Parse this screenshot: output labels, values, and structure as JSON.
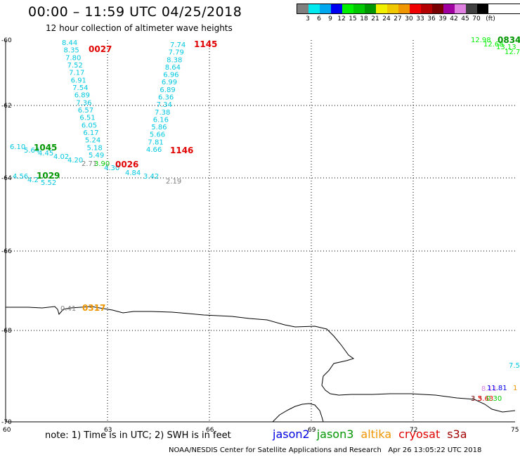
{
  "header": {
    "title": "00:00 – 11:59 UTC 04/25/2018",
    "subtitle": "12 hour collection of altimeter wave heights"
  },
  "legend": {
    "colors": [
      "#808080",
      "#00eaf0",
      "#00a8f0",
      "#0000f0",
      "#00f000",
      "#00c800",
      "#009600",
      "#f0f000",
      "#f0c800",
      "#f09600",
      "#f00000",
      "#b40000",
      "#780000",
      "#a000a0",
      "#e080e0",
      "#404040",
      "#000000"
    ],
    "labels": [
      "3",
      "6",
      "9",
      "12",
      "15",
      "18",
      "21",
      "24",
      "27",
      "30",
      "33",
      "36",
      "39",
      "42",
      "45",
      "70",
      "(ft)"
    ]
  },
  "axes": {
    "lon_ticks": [
      "60",
      "63",
      "66",
      "69",
      "72",
      "75"
    ],
    "lat_ticks": [
      "-60",
      "-62",
      "-64",
      "-66",
      "-68",
      "-70"
    ]
  },
  "tracks": [
    {
      "color": "#00c8e0",
      "values": [
        "8.44",
        "8.35",
        "7.80",
        "7.52",
        "7.17",
        "6.91",
        "7.54",
        "6.89",
        "7.36",
        "6.57",
        "6.51",
        "6.05",
        "6.17",
        "5.24",
        "5.18",
        "5.49"
      ]
    },
    {
      "color": "#00c8e0",
      "values": [
        "7.74",
        "7.79",
        "8.38",
        "8.64",
        "6.96",
        "6.99",
        "6.89",
        "6.36",
        "7.34",
        "7.38",
        "6.16",
        "5.86",
        "5.66",
        "7.81",
        "4.66"
      ]
    },
    {
      "color": "#00c8e0",
      "values": [
        "6.10",
        "5.64",
        "4.45",
        "4.02",
        "4.20",
        "4.30",
        "4.84",
        "3.42"
      ]
    },
    {
      "color": "#00c8e0",
      "values": [
        "4.56",
        "4.2",
        "5.52"
      ]
    }
  ],
  "extra_values": [
    {
      "text": "2.71",
      "color": "#808080"
    },
    {
      "text": "3.90",
      "color": "#00c800"
    },
    {
      "text": "2.19",
      "color": "#808080"
    },
    {
      "text": "0.41",
      "color": "#808080"
    },
    {
      "text": "12.98",
      "color": "#00f000"
    },
    {
      "text": "12.68",
      "color": "#00f000"
    },
    {
      "text": "13.13",
      "color": "#00f000"
    },
    {
      "text": "12.7",
      "color": "#00f000"
    },
    {
      "text": "7.5",
      "color": "#00c8e0"
    },
    {
      "text": "8.11",
      "color": "#e080e0"
    },
    {
      "text": "11.81",
      "color": "#0000f0"
    },
    {
      "text": "1",
      "color": "#f09600"
    },
    {
      "text": "3.3",
      "color": "#780000"
    },
    {
      "text": "5.63",
      "color": "#f00000"
    },
    {
      "text": "0.30",
      "color": "#00c800"
    }
  ],
  "time_labels": [
    {
      "text": "0027",
      "color": "#e00000"
    },
    {
      "text": "1145",
      "color": "#e00000"
    },
    {
      "text": "1045",
      "color": "#009600"
    },
    {
      "text": "1029",
      "color": "#009600"
    },
    {
      "text": "0026",
      "color": "#e00000"
    },
    {
      "text": "1146",
      "color": "#e00000"
    },
    {
      "text": "0317",
      "color": "#f09600"
    },
    {
      "text": "0834",
      "color": "#009600"
    }
  ],
  "footer": {
    "note": "note: 1) Time is in UTC; 2) SWH is in feet",
    "missions": [
      {
        "name": "jason2",
        "color": "#0000e0"
      },
      {
        "name": "jason3",
        "color": "#009600"
      },
      {
        "name": "altika",
        "color": "#f09600"
      },
      {
        "name": "cryosat",
        "color": "#e00000"
      },
      {
        "name": "s3a",
        "color": "#a00000"
      }
    ],
    "credit": "NOAA/NESDIS Center for Satellite Applications and Research   Apr 26 13:05:22 UTC 2018"
  }
}
